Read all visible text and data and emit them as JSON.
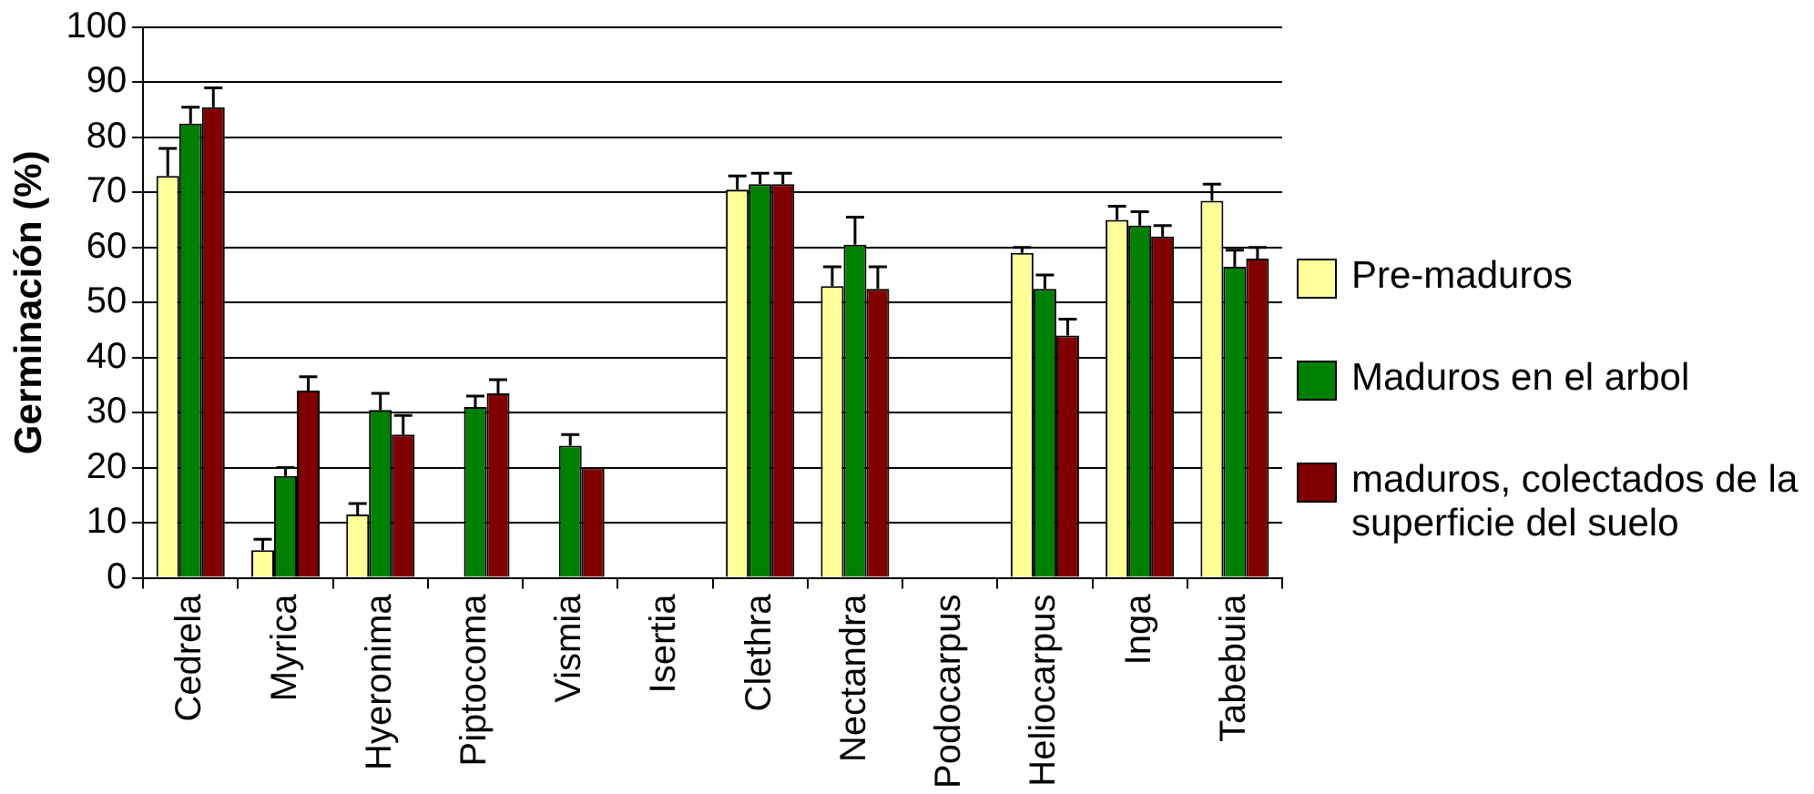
{
  "chart_data": {
    "type": "bar",
    "ylabel": "Germinación (%)",
    "categories": [
      "Cedrela",
      "Myrica",
      "Hyeronima",
      "Piptocoma",
      "Vismia",
      "Isertia",
      "Clethra",
      "Nectandra",
      "Podocarpus",
      "Heliocarpus",
      "Inga",
      "Tabebuia"
    ],
    "series": [
      {
        "name": "Pre-maduros",
        "color": "#ffff99",
        "values": [
          73,
          5,
          11.5,
          0,
          0,
          0,
          70.5,
          53,
          0,
          59,
          65,
          68.5
        ],
        "errors": [
          [
            73,
            78
          ],
          [
            5,
            7
          ],
          [
            11.5,
            13.5
          ],
          null,
          null,
          null,
          [
            70.5,
            73
          ],
          [
            53,
            56.5
          ],
          null,
          [
            59,
            60
          ],
          [
            65,
            67.5
          ],
          [
            68.5,
            71.5
          ]
        ]
      },
      {
        "name": "Maduros en el arbol",
        "color": "#008000",
        "values": [
          82.5,
          18.5,
          30.5,
          31,
          24,
          0,
          71.5,
          60.5,
          0,
          52.5,
          64,
          56.5
        ],
        "errors": [
          [
            82.5,
            85.5
          ],
          [
            18.5,
            20
          ],
          [
            30.5,
            33.5
          ],
          [
            31,
            33
          ],
          [
            24,
            26
          ],
          null,
          [
            71.5,
            73.5
          ],
          [
            60.5,
            65.5
          ],
          null,
          [
            52.5,
            55
          ],
          [
            64,
            66.5
          ],
          [
            56.5,
            59.5
          ]
        ]
      },
      {
        "name": "maduros, colectados de la superficie del suelo",
        "color": "#800000",
        "values": [
          85.5,
          34,
          26,
          33.5,
          20,
          0,
          71.5,
          52.5,
          0,
          44,
          62,
          58
        ],
        "errors": [
          [
            85.5,
            89
          ],
          [
            34,
            36.5
          ],
          [
            26,
            29.5
          ],
          [
            33.5,
            36
          ],
          null,
          null,
          [
            71.5,
            73.5
          ],
          [
            52.5,
            56.5
          ],
          null,
          [
            44,
            47
          ],
          [
            62,
            64
          ],
          [
            58,
            60
          ]
        ]
      }
    ],
    "ylim": [
      0,
      100
    ],
    "yticks": [
      0,
      10,
      20,
      30,
      40,
      50,
      60,
      70,
      80,
      90,
      100
    ],
    "grid": "y",
    "legend": "right"
  }
}
